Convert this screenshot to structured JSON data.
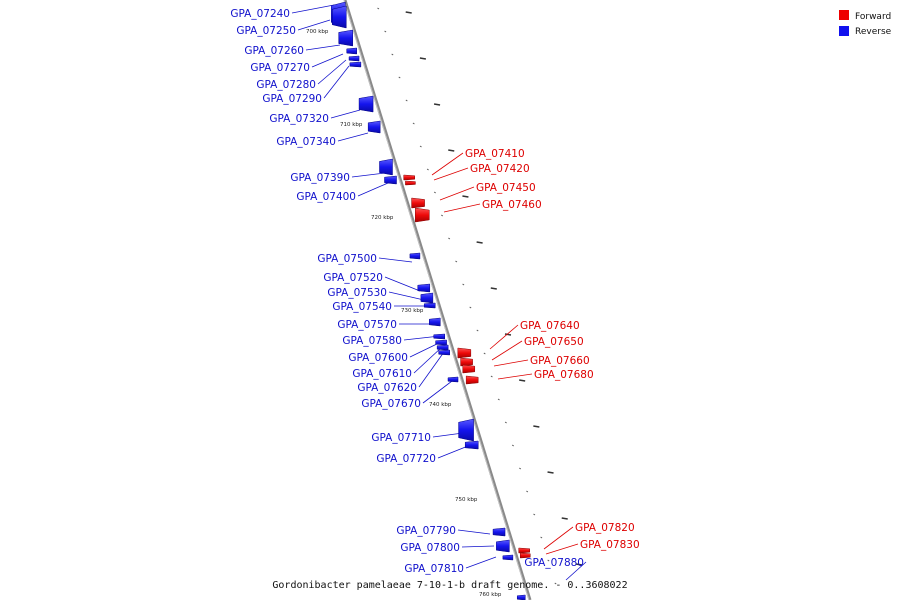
{
  "caption": "Gordonibacter pamelaeae 7-10-1-b draft genome. - 0..3608022",
  "legend": [
    {
      "label": "Forward",
      "color": "#ee0000"
    },
    {
      "label": "Reverse",
      "color": "#1111ee"
    }
  ],
  "positions": [
    "700 kbp",
    "710 kbp",
    "720 kbp",
    "730 kbp",
    "740 kbp",
    "750 kbp",
    "760 kbp"
  ],
  "genes": [
    {
      "name": "GPA_07240",
      "strand": "reverse"
    },
    {
      "name": "GPA_07250",
      "strand": "reverse"
    },
    {
      "name": "GPA_07260",
      "strand": "reverse"
    },
    {
      "name": "GPA_07270",
      "strand": "reverse"
    },
    {
      "name": "GPA_07280",
      "strand": "reverse"
    },
    {
      "name": "GPA_07290",
      "strand": "reverse"
    },
    {
      "name": "GPA_07320",
      "strand": "reverse"
    },
    {
      "name": "GPA_07340",
      "strand": "reverse"
    },
    {
      "name": "GPA_07390",
      "strand": "reverse"
    },
    {
      "name": "GPA_07400",
      "strand": "reverse"
    },
    {
      "name": "GPA_07410",
      "strand": "forward"
    },
    {
      "name": "GPA_07420",
      "strand": "forward"
    },
    {
      "name": "GPA_07450",
      "strand": "forward"
    },
    {
      "name": "GPA_07460",
      "strand": "forward"
    },
    {
      "name": "GPA_07500",
      "strand": "reverse"
    },
    {
      "name": "GPA_07520",
      "strand": "reverse"
    },
    {
      "name": "GPA_07530",
      "strand": "reverse"
    },
    {
      "name": "GPA_07540",
      "strand": "reverse"
    },
    {
      "name": "GPA_07570",
      "strand": "reverse"
    },
    {
      "name": "GPA_07580",
      "strand": "reverse"
    },
    {
      "name": "GPA_07600",
      "strand": "reverse"
    },
    {
      "name": "GPA_07610",
      "strand": "reverse"
    },
    {
      "name": "GPA_07620",
      "strand": "reverse"
    },
    {
      "name": "GPA_07670",
      "strand": "reverse"
    },
    {
      "name": "GPA_07640",
      "strand": "forward"
    },
    {
      "name": "GPA_07650",
      "strand": "forward"
    },
    {
      "name": "GPA_07660",
      "strand": "forward"
    },
    {
      "name": "GPA_07680",
      "strand": "forward"
    },
    {
      "name": "GPA_07710",
      "strand": "reverse"
    },
    {
      "name": "GPA_07720",
      "strand": "reverse"
    },
    {
      "name": "GPA_07790",
      "strand": "reverse"
    },
    {
      "name": "GPA_07800",
      "strand": "reverse"
    },
    {
      "name": "GPA_07810",
      "strand": "reverse"
    },
    {
      "name": "GPA_07820",
      "strand": "forward"
    },
    {
      "name": "GPA_07830",
      "strand": "forward"
    },
    {
      "name": "GPA_07880",
      "strand": "reverse"
    }
  ]
}
